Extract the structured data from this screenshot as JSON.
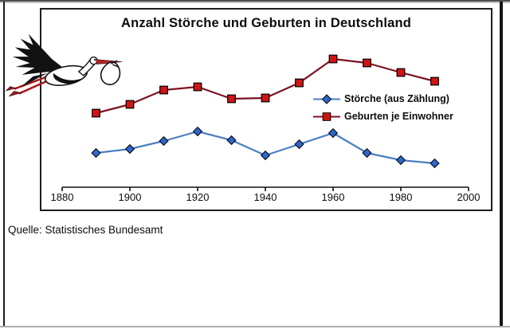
{
  "slide": {
    "source_note": "Quelle: Statistisches Bundesamt"
  },
  "icons": {
    "stork": "stork-carrying-baby-bundle-illustration"
  },
  "colors": {
    "stork_accent_red": "#b22222",
    "ink": "#111111",
    "frame_dark": "#1c1c1c",
    "frame_gray": "#adadad"
  },
  "chart_data": {
    "type": "line",
    "title": "Anzahl Störche und Geburten in Deutschland",
    "x": [
      1890,
      1900,
      1910,
      1920,
      1930,
      1940,
      1950,
      1960,
      1970,
      1980,
      1990
    ],
    "series": [
      {
        "name": "Störche (aus Zählung)",
        "marker": "diamond",
        "color": "#2f66cc",
        "line_color": "#4a7fc1",
        "values": [
          43,
          48,
          58,
          70,
          59,
          40,
          54,
          68,
          43,
          34,
          30
        ]
      },
      {
        "name": "Geburten je Einwohner",
        "marker": "square",
        "color": "#cf1414",
        "line_color": "#7d1222",
        "values": [
          93,
          104,
          122,
          126,
          111,
          112,
          131,
          161,
          156,
          144,
          133
        ]
      }
    ],
    "xlabel": "",
    "ylabel": "",
    "x_axis": {
      "min": 1880,
      "max": 2000,
      "ticks": [
        1880,
        1900,
        1920,
        1940,
        1960,
        1980,
        2000
      ]
    },
    "y_axis": {
      "visible": false,
      "note": "no y-axis scale shown; values are relative units read from plot"
    },
    "legend_position": "middle-right",
    "grid": false
  }
}
